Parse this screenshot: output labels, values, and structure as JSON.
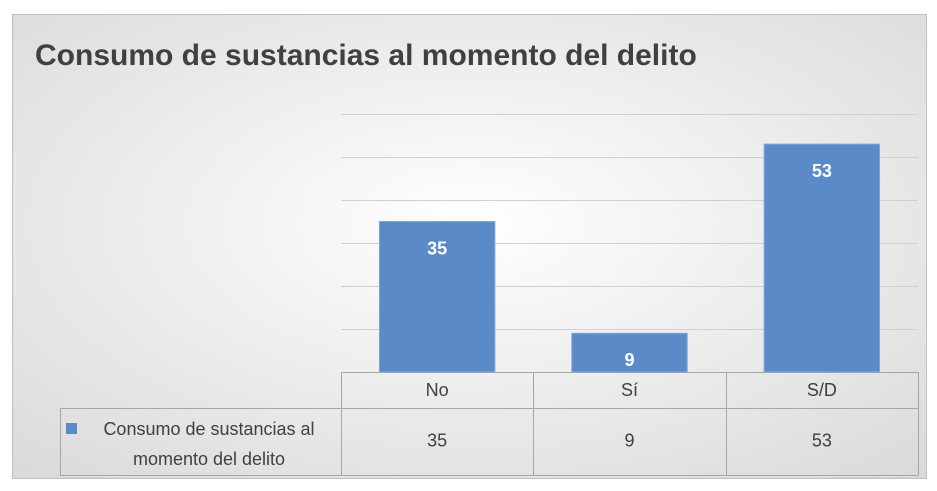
{
  "chart_data": {
    "type": "bar",
    "title": "Consumo de sustancias al momento del delito",
    "categories": [
      "No",
      "Sí",
      "S/D"
    ],
    "series": [
      {
        "name": "Consumo de sustancias al momento del delito",
        "color": "#5b8ac9",
        "values": [
          35,
          9,
          53
        ]
      }
    ],
    "ylim": [
      0,
      60
    ],
    "yticks": [
      0,
      10,
      20,
      30,
      40,
      50,
      60
    ],
    "grid": true,
    "data_table": true
  }
}
